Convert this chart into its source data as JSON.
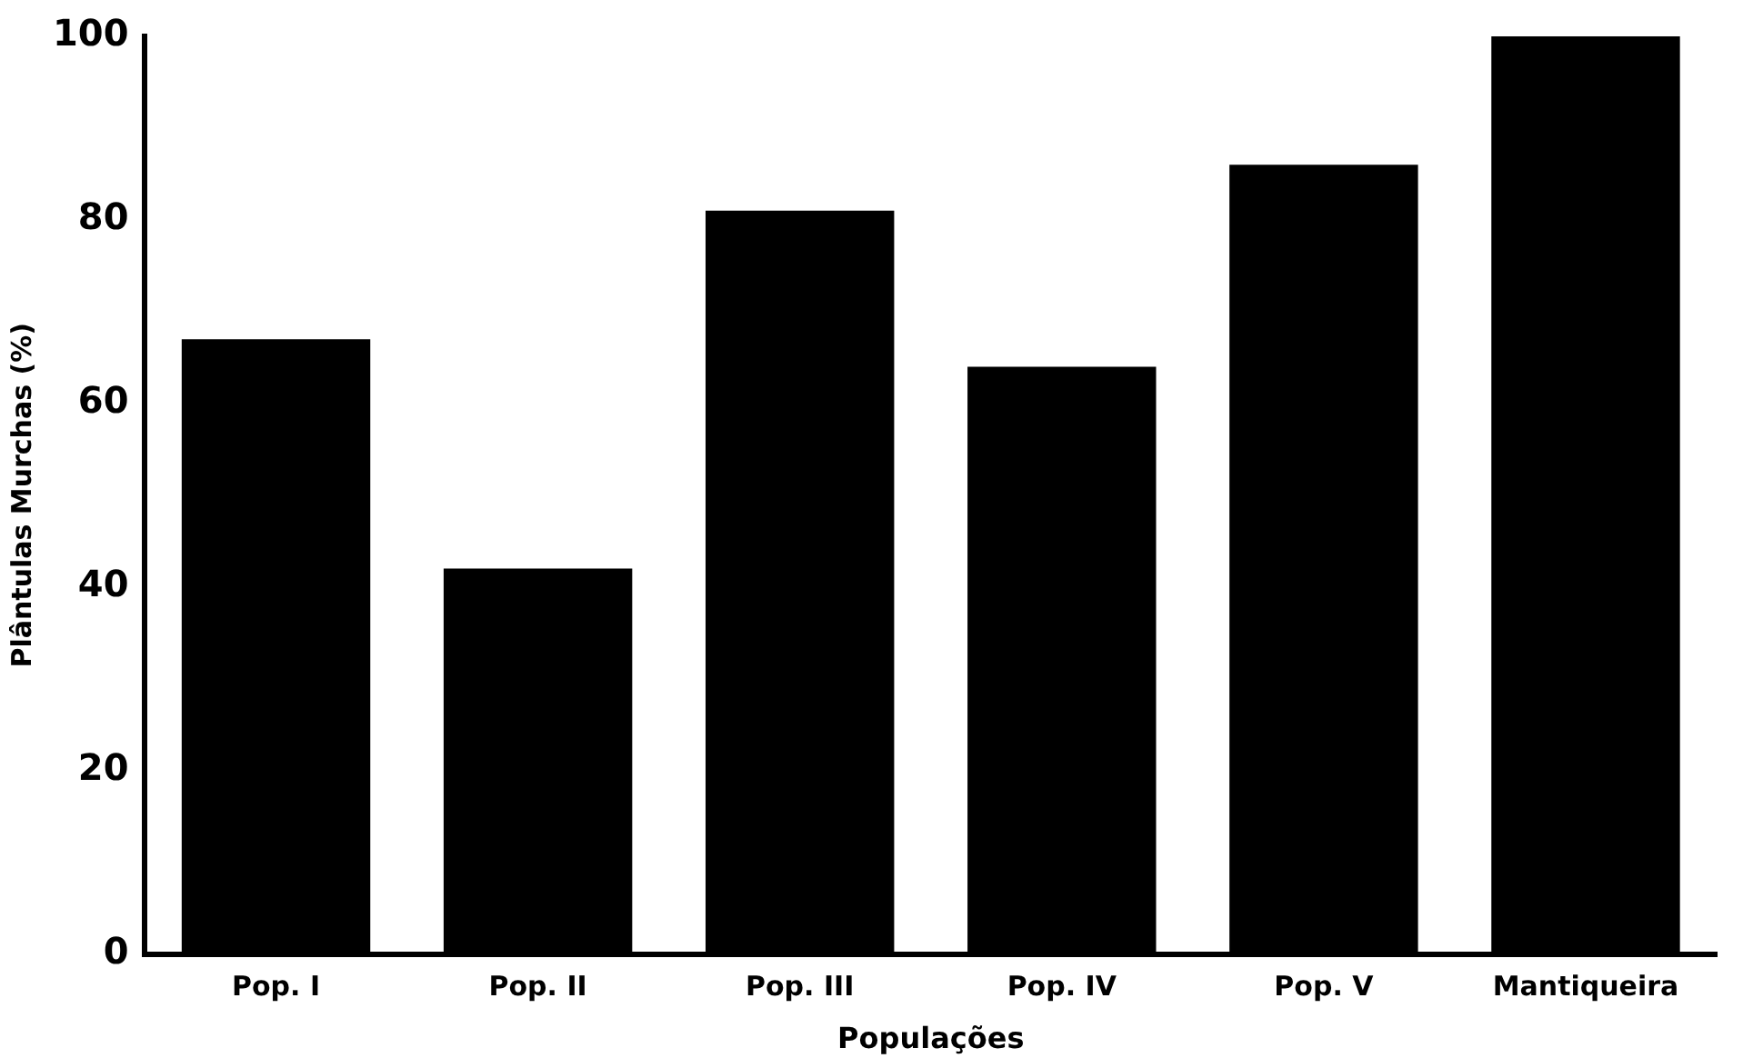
{
  "chart_data": {
    "type": "bar",
    "xlabel": "Populações",
    "ylabel": "Plântulas Murchas (%)",
    "categories": [
      "Pop. I",
      "Pop. II",
      "Pop. III",
      "Pop. IV",
      "Pop. V",
      "Mantiqueira"
    ],
    "values": [
      67,
      42,
      81,
      64,
      86,
      100
    ],
    "color": "#000000",
    "ylim": [
      0,
      100
    ],
    "yticks": [
      0,
      20,
      40,
      60,
      80,
      100
    ],
    "grid": false,
    "legend": false
  }
}
